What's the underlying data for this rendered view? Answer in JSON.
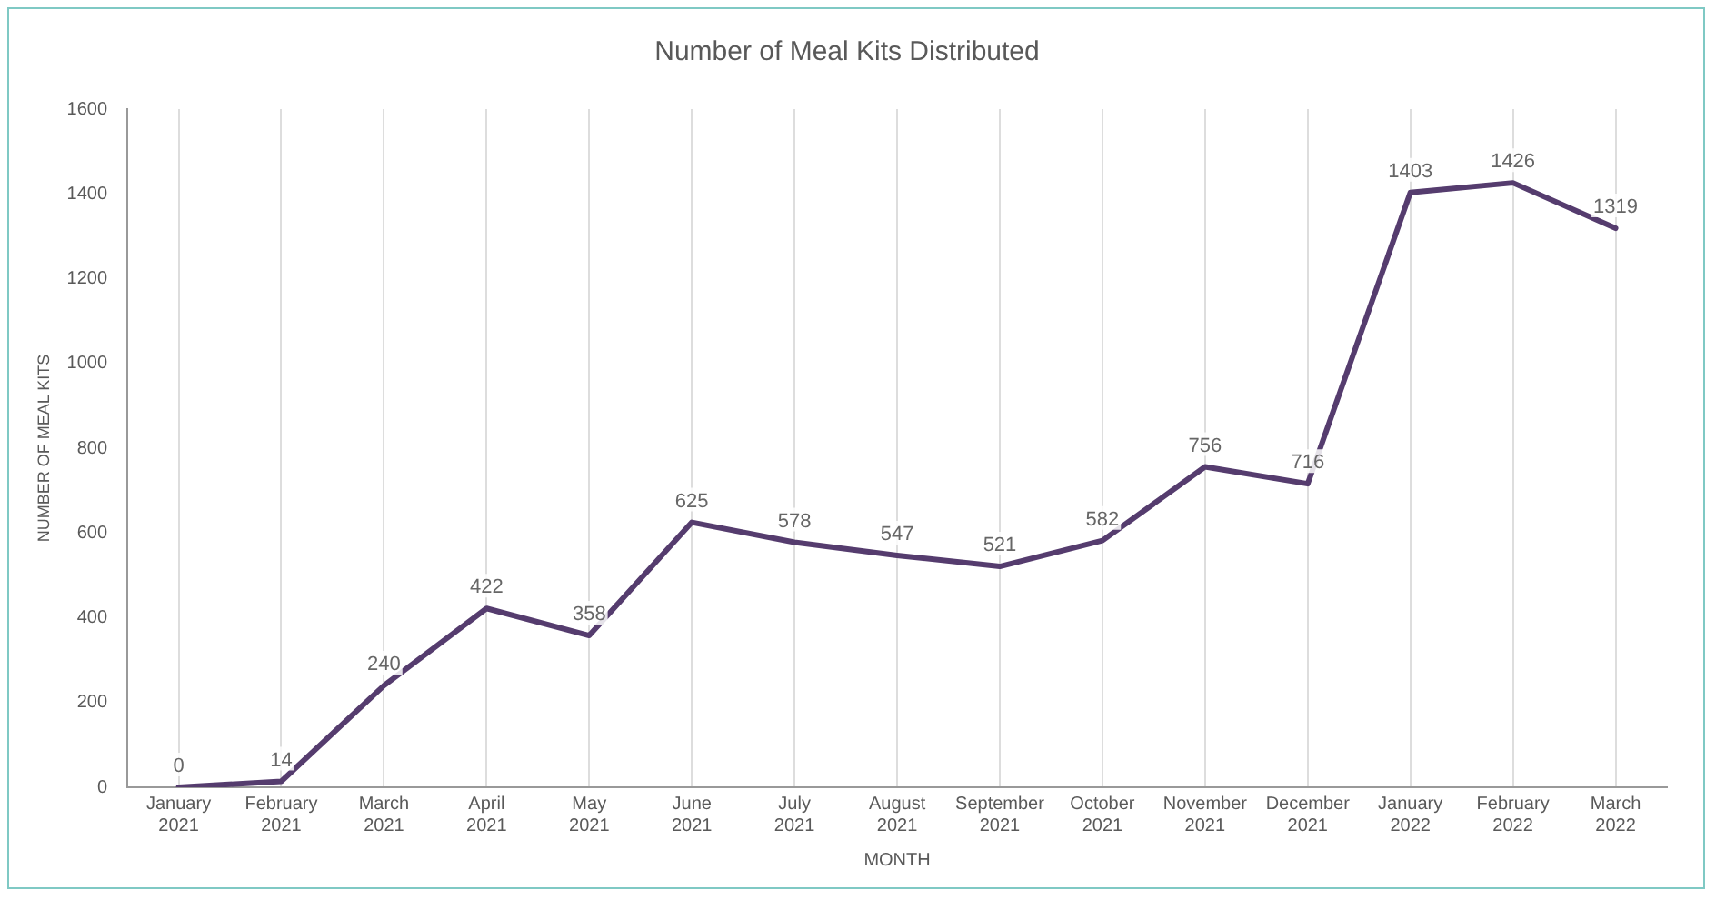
{
  "chart_data": {
    "type": "line",
    "title": "Number of Meal Kits Distributed",
    "xlabel": "MONTH",
    "ylabel": "NUMBER OF MEAL KITS",
    "categories": [
      "January 2021",
      "February 2021",
      "March 2021",
      "April 2021",
      "May 2021",
      "June 2021",
      "July 2021",
      "August 2021",
      "September 2021",
      "October 2021",
      "November 2021",
      "December 2021",
      "January 2022",
      "February 2022",
      "March 2022"
    ],
    "series": [
      {
        "color": "#553c6e",
        "values": [
          0,
          14,
          240,
          422,
          358,
          625,
          578,
          547,
          521,
          582,
          756,
          716,
          1403,
          1426,
          1319
        ]
      }
    ],
    "ylim": [
      0,
      1600
    ],
    "yticks": [
      0,
      200,
      400,
      600,
      800,
      1000,
      1200,
      1400,
      1600
    ],
    "grid": "x",
    "legend": false,
    "marker": "none",
    "line_style": "solid",
    "data_labels": true
  }
}
